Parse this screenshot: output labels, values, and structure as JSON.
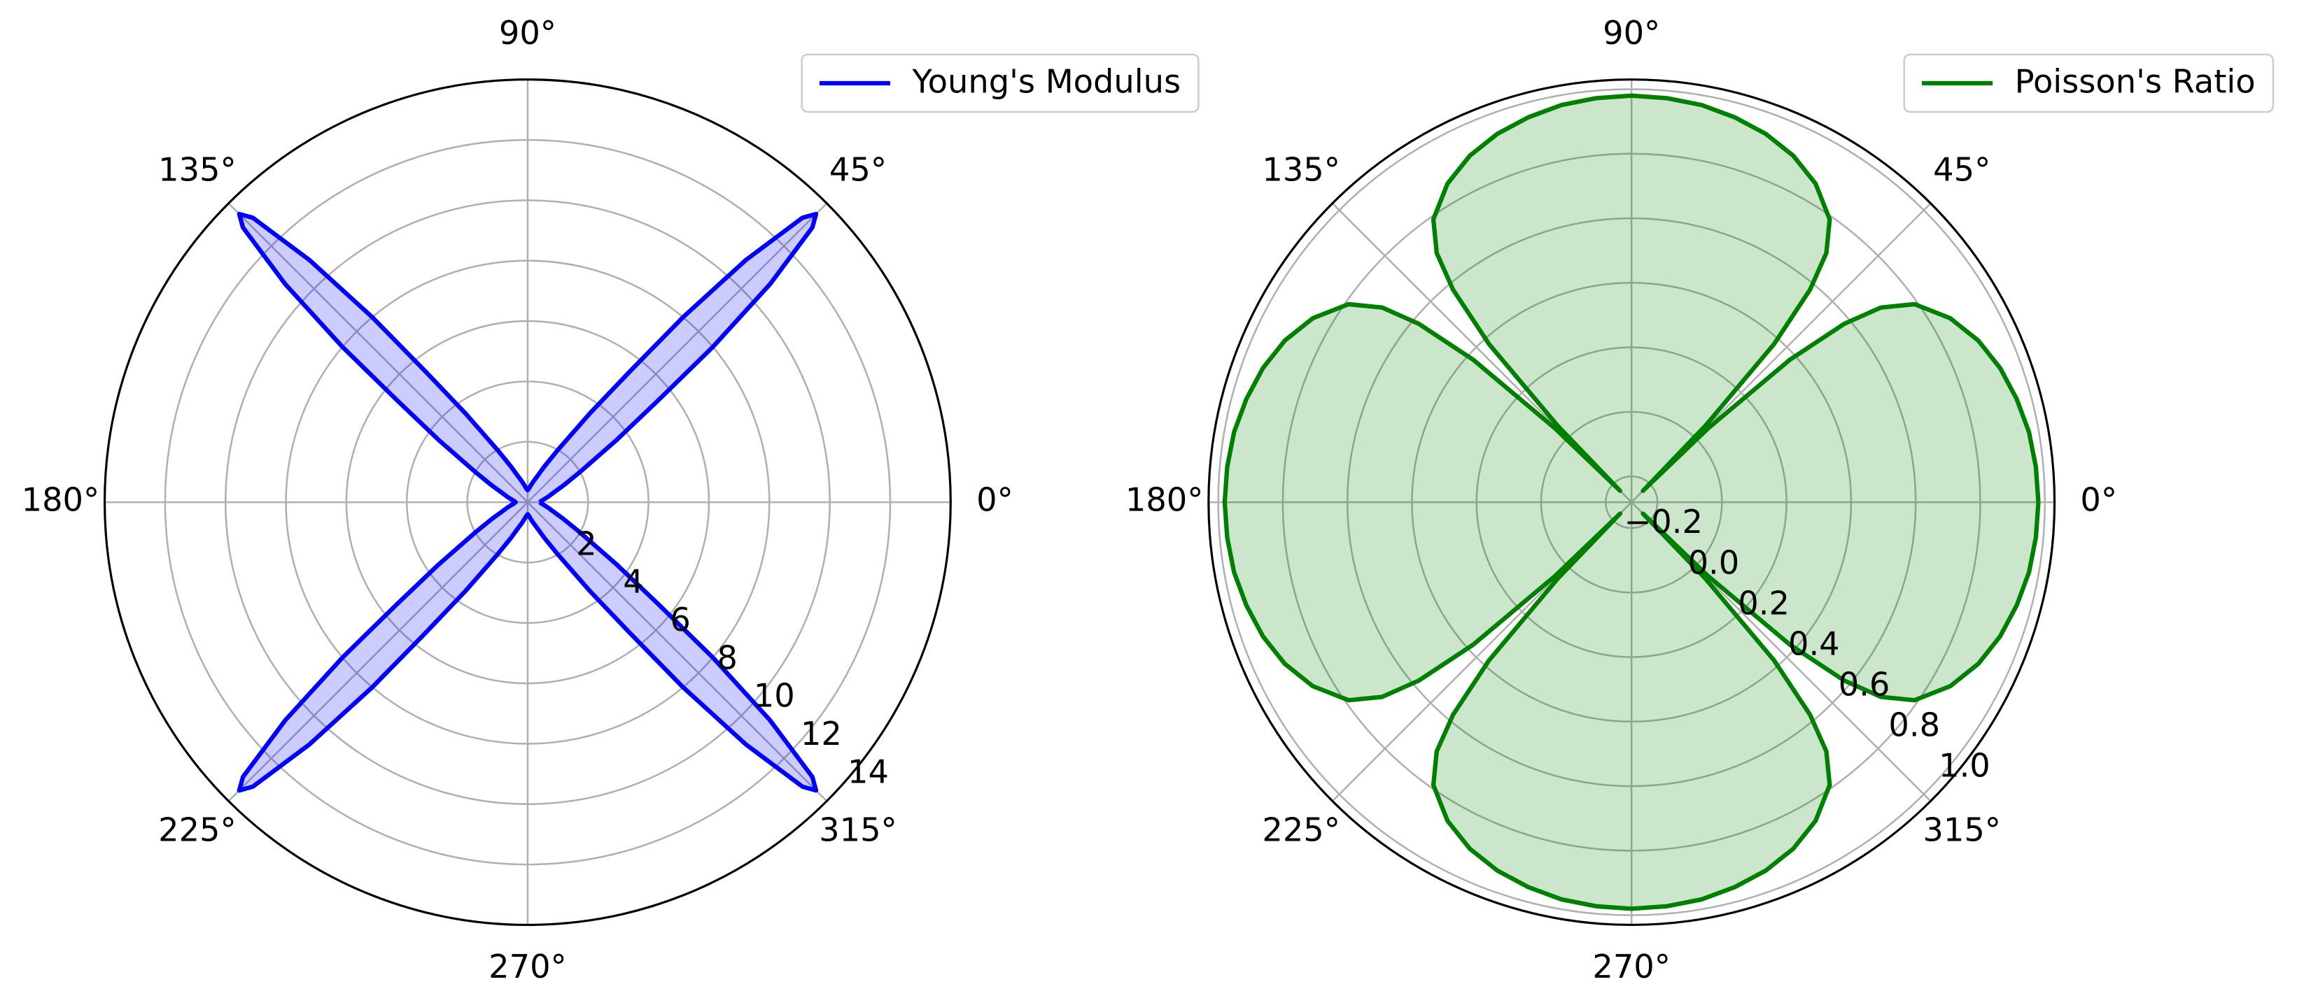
{
  "chart_data": [
    {
      "type": "polar",
      "x": [
        0,
        5,
        10,
        15,
        20,
        25,
        30,
        35,
        38,
        40,
        42,
        44,
        45,
        46,
        48,
        50,
        52,
        55,
        60,
        65,
        70,
        75,
        80,
        85,
        90,
        95,
        100,
        105,
        110,
        115,
        120,
        125,
        128,
        130,
        132,
        134,
        135,
        136,
        138,
        140,
        142,
        145,
        150,
        155,
        160,
        165,
        170,
        175,
        180,
        185,
        190,
        195,
        200,
        205,
        210,
        215,
        218,
        220,
        222,
        224,
        225,
        226,
        228,
        230,
        232,
        235,
        240,
        245,
        250,
        255,
        260,
        265,
        270,
        275,
        280,
        285,
        290,
        295,
        300,
        305,
        308,
        310,
        312,
        314,
        315,
        316,
        318,
        320,
        322,
        325,
        330,
        335,
        340,
        345,
        350,
        355,
        360
      ],
      "series": [
        {
          "name": "Young's Modulus",
          "color": "#0000ff",
          "values": [
            0.4,
            0.45,
            0.55,
            0.7,
            0.9,
            1.3,
            2.0,
            3.6,
            5.5,
            8.0,
            10.8,
            13.1,
            13.5,
            13.1,
            10.8,
            8.0,
            5.5,
            3.6,
            2.0,
            1.3,
            0.9,
            0.7,
            0.55,
            0.45,
            0.4,
            0.45,
            0.55,
            0.7,
            0.9,
            1.3,
            2.0,
            3.6,
            5.5,
            8.0,
            10.8,
            13.1,
            13.5,
            13.1,
            10.8,
            8.0,
            5.5,
            3.6,
            2.0,
            1.3,
            0.9,
            0.7,
            0.55,
            0.45,
            0.4,
            0.45,
            0.55,
            0.7,
            0.9,
            1.3,
            2.0,
            3.6,
            5.5,
            8.0,
            10.8,
            13.1,
            13.5,
            13.1,
            10.8,
            8.0,
            5.5,
            3.6,
            2.0,
            1.3,
            0.9,
            0.7,
            0.55,
            0.45,
            0.4,
            0.45,
            0.55,
            0.7,
            0.9,
            1.3,
            2.0,
            3.6,
            5.5,
            8.0,
            10.8,
            13.1,
            13.5,
            13.1,
            10.8,
            8.0,
            5.5,
            3.6,
            2.0,
            1.3,
            0.9,
            0.7,
            0.55,
            0.45,
            0.4
          ]
        }
      ],
      "ylim": [
        0,
        14
      ],
      "yticks": [
        2,
        4,
        6,
        8,
        10,
        12,
        14
      ],
      "xticks": [
        {
          "value": 0,
          "label": "0°"
        },
        {
          "value": 45,
          "label": "45°"
        },
        {
          "value": 90,
          "label": "90°"
        },
        {
          "value": 135,
          "label": "135°"
        },
        {
          "value": 180,
          "label": "180°"
        },
        {
          "value": 225,
          "label": "225°"
        },
        {
          "value": 270,
          "label": "270°"
        },
        {
          "value": 315,
          "label": "315°"
        }
      ],
      "fill": true,
      "grid": true,
      "legend": "upper right"
    },
    {
      "type": "polar",
      "x": [
        0,
        5,
        10,
        15,
        20,
        25,
        30,
        35,
        38,
        40,
        42,
        44,
        45,
        46,
        48,
        50,
        52,
        55,
        60,
        65,
        70,
        75,
        80,
        85,
        90,
        95,
        100,
        105,
        110,
        115,
        120,
        125,
        128,
        130,
        132,
        134,
        135,
        136,
        138,
        140,
        142,
        145,
        150,
        155,
        160,
        165,
        170,
        175,
        180,
        185,
        190,
        195,
        200,
        205,
        210,
        215,
        218,
        220,
        222,
        224,
        225,
        226,
        228,
        230,
        232,
        235,
        240,
        245,
        250,
        255,
        260,
        265,
        270,
        275,
        280,
        285,
        290,
        295,
        300,
        305,
        308,
        310,
        312,
        314,
        315,
        316,
        318,
        320,
        322,
        325,
        330,
        335,
        340,
        345,
        350,
        355,
        360
      ],
      "series": [
        {
          "name": "Poisson's Ratio",
          "color": "#008000",
          "values": [
            0.98,
            0.977,
            0.97,
            0.955,
            0.935,
            0.905,
            0.86,
            0.79,
            0.7,
            0.58,
            0.38,
            0.05,
            -0.23,
            0.05,
            0.38,
            0.58,
            0.7,
            0.79,
            0.86,
            0.905,
            0.935,
            0.955,
            0.97,
            0.977,
            0.98,
            0.977,
            0.97,
            0.955,
            0.935,
            0.905,
            0.86,
            0.79,
            0.7,
            0.58,
            0.38,
            0.05,
            -0.23,
            0.05,
            0.38,
            0.58,
            0.7,
            0.79,
            0.86,
            0.905,
            0.935,
            0.955,
            0.97,
            0.977,
            0.98,
            0.977,
            0.97,
            0.955,
            0.935,
            0.905,
            0.86,
            0.79,
            0.7,
            0.58,
            0.38,
            0.05,
            -0.23,
            0.05,
            0.38,
            0.58,
            0.7,
            0.79,
            0.86,
            0.905,
            0.935,
            0.955,
            0.97,
            0.977,
            0.98,
            0.977,
            0.97,
            0.955,
            0.935,
            0.905,
            0.86,
            0.79,
            0.7,
            0.58,
            0.38,
            0.05,
            -0.23,
            0.05,
            0.38,
            0.58,
            0.7,
            0.79,
            0.86,
            0.905,
            0.935,
            0.955,
            0.97,
            0.977,
            0.98
          ]
        }
      ],
      "ylim": [
        -0.28,
        1.03
      ],
      "yticks": [
        {
          "value": -0.2,
          "label": "−0.2"
        },
        {
          "value": 0,
          "label": "0.0"
        },
        0.2,
        0.4,
        0.6,
        0.8,
        {
          "value": 1,
          "label": "1.0"
        }
      ],
      "xticks": [
        {
          "value": 0,
          "label": "0°"
        },
        {
          "value": 45,
          "label": "45°"
        },
        {
          "value": 90,
          "label": "90°"
        },
        {
          "value": 135,
          "label": "135°"
        },
        {
          "value": 180,
          "label": "180°"
        },
        {
          "value": 225,
          "label": "225°"
        },
        {
          "value": 270,
          "label": "270°"
        },
        {
          "value": 315,
          "label": "315°"
        }
      ],
      "fill": true,
      "grid": true,
      "legend": "upper right"
    }
  ]
}
